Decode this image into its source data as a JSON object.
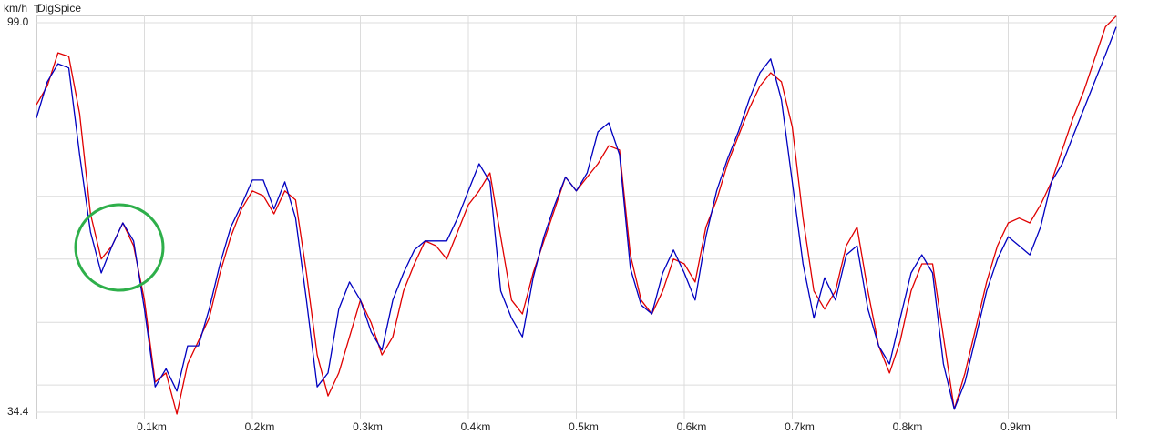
{
  "chart_data": {
    "type": "line",
    "title": "DigSpice",
    "y_label": "km/h",
    "x": [
      0,
      0.01,
      0.02,
      0.03,
      0.04,
      0.05,
      0.06,
      0.07,
      0.08,
      0.09,
      0.1,
      0.11,
      0.12,
      0.13,
      0.14,
      0.15,
      0.16,
      0.17,
      0.18,
      0.19,
      0.2,
      0.21,
      0.22,
      0.23,
      0.24,
      0.25,
      0.26,
      0.27,
      0.28,
      0.29,
      0.3,
      0.31,
      0.32,
      0.33,
      0.34,
      0.35,
      0.36,
      0.37,
      0.38,
      0.39,
      0.4,
      0.41,
      0.42,
      0.43,
      0.44,
      0.45,
      0.46,
      0.47,
      0.48,
      0.49,
      0.5,
      0.51,
      0.52,
      0.53,
      0.54,
      0.55,
      0.56,
      0.57,
      0.58,
      0.59,
      0.6,
      0.61,
      0.62,
      0.63,
      0.64,
      0.65,
      0.66,
      0.67,
      0.68,
      0.69,
      0.7,
      0.71,
      0.72,
      0.73,
      0.74,
      0.75,
      0.76,
      0.77,
      0.78,
      0.79,
      0.8,
      0.81,
      0.82,
      0.83,
      0.84,
      0.85,
      0.86,
      0.87,
      0.88,
      0.89,
      0.9,
      0.91,
      0.92,
      0.93,
      0.94,
      0.95,
      0.96,
      0.97,
      0.98,
      0.99,
      1.0
    ],
    "series": [
      {
        "color": "#e00000",
        "values": [
          85.4,
          88.5,
          94.0,
          93.4,
          83.9,
          67.3,
          59.8,
          62.0,
          65.8,
          62.0,
          53.0,
          39.4,
          40.9,
          34.1,
          42.4,
          46.2,
          50.0,
          57.5,
          63.5,
          68.1,
          71.1,
          70.3,
          67.3,
          71.1,
          69.6,
          57.5,
          43.9,
          37.1,
          40.9,
          46.9,
          53.0,
          49.2,
          43.9,
          46.9,
          54.5,
          59.0,
          62.8,
          62.0,
          59.8,
          64.3,
          68.8,
          71.1,
          74.1,
          63.5,
          53.0,
          50.7,
          57.5,
          62.8,
          68.1,
          73.4,
          71.1,
          73.4,
          75.6,
          78.6,
          77.9,
          60.5,
          53.0,
          50.7,
          54.5,
          59.8,
          59.0,
          56.0,
          65.1,
          69.6,
          75.6,
          80.2,
          84.7,
          88.5,
          90.7,
          89.2,
          81.7,
          66.6,
          54.5,
          51.5,
          54.5,
          62.0,
          65.1,
          54.5,
          45.4,
          40.9,
          46.2,
          54.5,
          59.0,
          59.0,
          46.9,
          34.9,
          40.9,
          48.4,
          56.0,
          62.0,
          65.8,
          66.6,
          65.8,
          68.8,
          72.6,
          77.9,
          83.2,
          87.7,
          93.0,
          98.3,
          100.1
        ]
      },
      {
        "color": "#0000c0",
        "values": [
          83.2,
          89.2,
          92.2,
          91.5,
          77.1,
          64.3,
          57.5,
          62.0,
          65.8,
          62.8,
          51.5,
          38.6,
          41.6,
          37.9,
          45.4,
          45.4,
          51.5,
          59.0,
          65.1,
          68.8,
          72.9,
          72.9,
          68.1,
          72.6,
          66.6,
          53.0,
          38.6,
          40.9,
          51.5,
          56.0,
          53.0,
          47.7,
          44.7,
          53.0,
          57.5,
          61.3,
          62.8,
          62.8,
          62.8,
          66.6,
          71.1,
          75.6,
          72.6,
          54.5,
          50.0,
          46.9,
          56.7,
          63.5,
          68.8,
          73.4,
          71.1,
          74.1,
          80.9,
          82.4,
          77.1,
          58.3,
          52.2,
          50.7,
          57.5,
          61.3,
          57.5,
          53.0,
          63.5,
          71.1,
          76.4,
          80.9,
          86.2,
          90.7,
          93.0,
          86.2,
          72.6,
          59.0,
          50.0,
          56.7,
          53.0,
          60.5,
          62.0,
          51.5,
          45.4,
          42.4,
          50.0,
          57.5,
          60.5,
          57.5,
          42.4,
          34.9,
          39.4,
          46.9,
          54.5,
          59.8,
          63.5,
          62.0,
          60.5,
          65.1,
          72.6,
          75.6,
          80.2,
          84.7,
          89.2,
          93.7,
          98.3
        ]
      }
    ],
    "xlim": [
      0,
      1
    ],
    "xticks": [
      {
        "value": 0.1,
        "label": "0.1km"
      },
      {
        "value": 0.2,
        "label": "0.2km"
      },
      {
        "value": 0.3,
        "label": "0.3km"
      },
      {
        "value": 0.4,
        "label": "0.4km"
      },
      {
        "value": 0.5,
        "label": "0.5km"
      },
      {
        "value": 0.6,
        "label": "0.6km"
      },
      {
        "value": 0.7,
        "label": "0.7km"
      },
      {
        "value": 0.8,
        "label": "0.8km"
      },
      {
        "value": 0.9,
        "label": "0.9km"
      }
    ],
    "ylim": [
      34.4,
      99.0
    ],
    "yticks": [
      {
        "value": 34.4,
        "label": "34.4"
      },
      {
        "value": 38.9,
        "label": null
      },
      {
        "value": 49.3,
        "label": null
      },
      {
        "value": 59.8,
        "label": null
      },
      {
        "value": 70.2,
        "label": null
      },
      {
        "value": 80.6,
        "label": null
      },
      {
        "value": 91.0,
        "label": null
      },
      {
        "value": 99.0,
        "label": "99.0"
      }
    ],
    "grid": true
  }
}
